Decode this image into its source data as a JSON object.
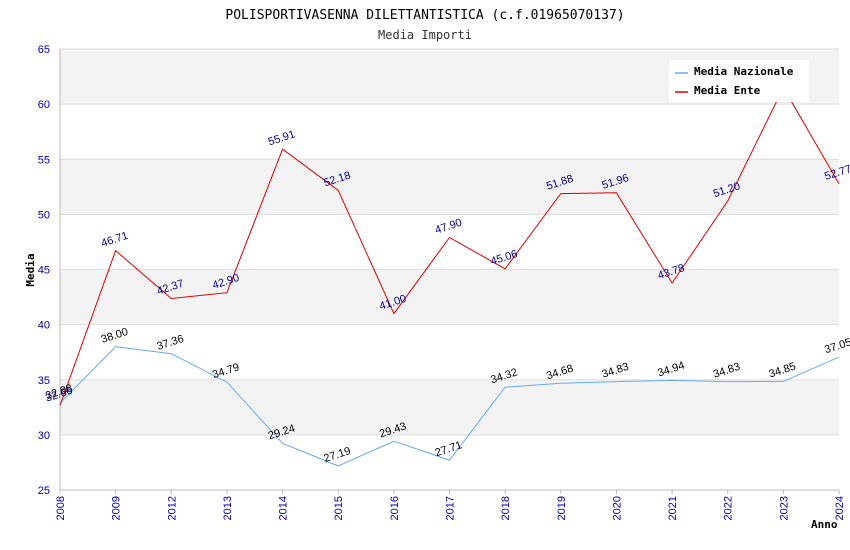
{
  "chart_data": {
    "type": "line",
    "title": "POLISPORTIVASENNA DILETTANTISTICA (c.f.01965070137)",
    "subtitle": "Media Importi",
    "ylabel": "Media",
    "xlabel": "Anno",
    "ylim": [
      25,
      65
    ],
    "yticks": [
      25,
      30,
      35,
      40,
      45,
      50,
      55,
      60,
      65
    ],
    "grid": true,
    "legend_position": "top-right",
    "categories": [
      "2008",
      "2009",
      "2012",
      "2013",
      "2014",
      "2015",
      "2016",
      "2017",
      "2018",
      "2019",
      "2020",
      "2021",
      "2022",
      "2023",
      "2024"
    ],
    "series": [
      {
        "name": "Media Nazionale",
        "color": "#66aaee",
        "label_color": "#000000",
        "values": [
          32.88,
          38.0,
          37.36,
          34.79,
          29.24,
          27.19,
          29.43,
          27.71,
          34.32,
          34.68,
          34.83,
          34.94,
          34.83,
          34.85,
          37.05
        ],
        "labels": [
          "32.88",
          "38.00",
          "37.36",
          "34.79",
          "29.24",
          "27.19",
          "29.43",
          "27.71",
          "34.32",
          "34.68",
          "34.83",
          "34.94",
          "34.83",
          "34.85",
          "37.05"
        ]
      },
      {
        "name": "Media Ente",
        "color": "#dd0000",
        "label_color": "#000088",
        "values": [
          32.66,
          46.71,
          42.37,
          42.9,
          55.91,
          52.18,
          41.0,
          47.9,
          45.06,
          51.88,
          51.96,
          43.78,
          51.2,
          61.5,
          52.77
        ],
        "labels": [
          "32.66",
          "46.71",
          "42.37",
          "42.90",
          "55.91",
          "52.18",
          "41.00",
          "47.90",
          "45.06",
          "51.88",
          "51.96",
          "43.78",
          "51.20",
          "",
          "52.77"
        ]
      }
    ]
  }
}
